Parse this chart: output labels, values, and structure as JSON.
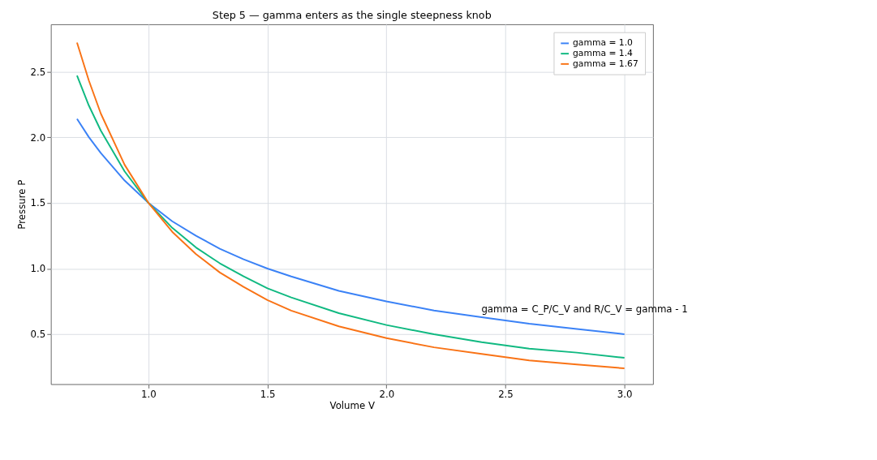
{
  "chart_data": {
    "type": "line",
    "title": "Step 5 — gamma enters as the single steepness knob",
    "xlabel": "Volume  V",
    "ylabel": "Pressure  P",
    "x": [
      0.7,
      0.75,
      0.8,
      0.9,
      1.0,
      1.1,
      1.2,
      1.3,
      1.4,
      1.5,
      1.6,
      1.8,
      2.0,
      2.2,
      2.4,
      2.6,
      2.8,
      3.0
    ],
    "series": [
      {
        "name": "gamma = 1.0",
        "color": "#3b82f6",
        "values": [
          2.14,
          2.0,
          1.88,
          1.67,
          1.5,
          1.36,
          1.25,
          1.15,
          1.07,
          1.0,
          0.94,
          0.83,
          0.75,
          0.68,
          0.63,
          0.58,
          0.54,
          0.5
        ]
      },
      {
        "name": "gamma = 1.4",
        "color": "#10b981",
        "values": [
          2.47,
          2.24,
          2.05,
          1.74,
          1.5,
          1.31,
          1.16,
          1.04,
          0.94,
          0.85,
          0.78,
          0.66,
          0.57,
          0.5,
          0.44,
          0.39,
          0.36,
          0.32
        ]
      },
      {
        "name": "gamma = 1.67",
        "color": "#f97316",
        "values": [
          2.72,
          2.43,
          2.18,
          1.79,
          1.5,
          1.28,
          1.11,
          0.97,
          0.86,
          0.76,
          0.68,
          0.56,
          0.47,
          0.4,
          0.35,
          0.3,
          0.27,
          0.24
        ]
      }
    ],
    "xlim": [
      0.59,
      3.12
    ],
    "xticks": [
      {
        "value": 1,
        "label": "1.0"
      },
      1.5,
      {
        "value": 2,
        "label": "2.0"
      },
      2.5,
      {
        "value": 3,
        "label": "3.0"
      }
    ],
    "ylim": [
      0.12,
      2.86
    ],
    "yticks": [
      0.5,
      {
        "value": 1,
        "label": "1.0"
      },
      1.5,
      {
        "value": 2,
        "label": "2.0"
      },
      2.5
    ],
    "grid": true,
    "legend": "top right",
    "marker": "none",
    "line_style": "solid",
    "annotations": [
      "gamma = C_P/C_V  and  R/C_V = gamma - 1"
    ]
  }
}
